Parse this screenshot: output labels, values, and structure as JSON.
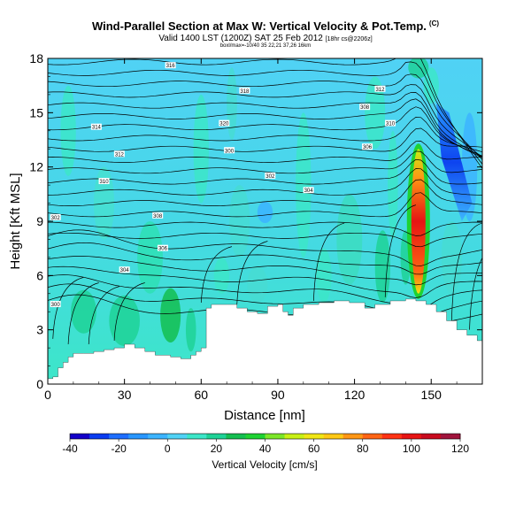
{
  "chart_data": {
    "type": "heatmap",
    "title": "Wind-Parallel Section at Max W: Vertical Velocity & Pot.Temp.",
    "title_mark": "(C)",
    "subtitle": "Valid 1400 LST (1200Z) SAT 25 Feb 2012",
    "subtitle_small": "[18hr cs@2206z]",
    "subsubtitle": "boxl/max=-10/40 35 22,21 37,26 16km",
    "xlabel": "Distance [nm]",
    "ylabel": "Height [Kft MSL]",
    "xlim": [
      0,
      170
    ],
    "ylim": [
      0,
      18
    ],
    "xticks": [
      0,
      30,
      60,
      90,
      120,
      150
    ],
    "yticks": [
      0,
      3,
      6,
      9,
      12,
      15,
      18
    ],
    "colorbar": {
      "label": "Vertical Velocity [cm/s]",
      "ticks": [
        -40,
        -20,
        0,
        20,
        40,
        60,
        80,
        100,
        120
      ],
      "colors": [
        "#1400c8",
        "#0a3cf0",
        "#1e6eff",
        "#2896ff",
        "#3cb4ff",
        "#50d2f5",
        "#3ce6c8",
        "#1ed296",
        "#14be50",
        "#1ed232",
        "#7ce628",
        "#c8f014",
        "#f0e614",
        "#ffc814",
        "#ff9614",
        "#ff6414",
        "#ff3214",
        "#e61414",
        "#c80a1e",
        "#a0143c"
      ]
    },
    "theta_labels": [
      "300",
      "302",
      "304",
      "306",
      "308",
      "310",
      "312",
      "314",
      "316",
      "318",
      "320"
    ],
    "terrain": [
      [
        0,
        0.3
      ],
      [
        2,
        0.4
      ],
      [
        4,
        0.9
      ],
      [
        6,
        1.2
      ],
      [
        8,
        1.5
      ],
      [
        10,
        1.7
      ],
      [
        14,
        1.7
      ],
      [
        18,
        1.8
      ],
      [
        22,
        1.9
      ],
      [
        26,
        2.0
      ],
      [
        30,
        2.2
      ],
      [
        34,
        2.0
      ],
      [
        38,
        1.8
      ],
      [
        42,
        1.6
      ],
      [
        48,
        1.5
      ],
      [
        52,
        1.4
      ],
      [
        56,
        1.6
      ],
      [
        58,
        1.8
      ],
      [
        60,
        2.0
      ],
      [
        62,
        4.2
      ],
      [
        64,
        4.4
      ],
      [
        70,
        4.4
      ],
      [
        74,
        4.2
      ],
      [
        78,
        4.0
      ],
      [
        82,
        3.9
      ],
      [
        86,
        4.3
      ],
      [
        90,
        4.4
      ],
      [
        92,
        4.0
      ],
      [
        94,
        3.8
      ],
      [
        96,
        4.2
      ],
      [
        100,
        4.4
      ],
      [
        106,
        4.5
      ],
      [
        112,
        4.6
      ],
      [
        118,
        4.5
      ],
      [
        124,
        4.2
      ],
      [
        128,
        4.4
      ],
      [
        134,
        4.6
      ],
      [
        140,
        4.7
      ],
      [
        144,
        4.6
      ],
      [
        148,
        4.4
      ],
      [
        152,
        4.0
      ],
      [
        156,
        3.5
      ],
      [
        160,
        3.0
      ],
      [
        164,
        2.7
      ],
      [
        168,
        2.4
      ],
      [
        170,
        2.3
      ]
    ],
    "updraft": {
      "x": 145,
      "y_bottom": 5.0,
      "y_top": 13.0,
      "max": 120
    },
    "downdraft": {
      "x": 158,
      "y_bottom": 10.0,
      "y_top": 15.5,
      "min": -40
    }
  }
}
